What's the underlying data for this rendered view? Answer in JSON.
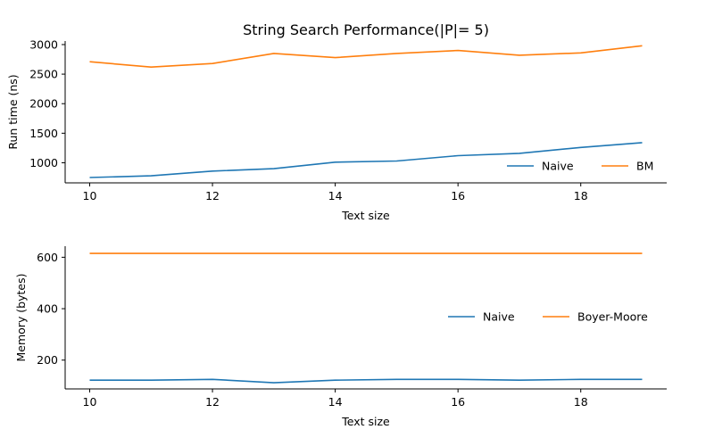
{
  "figure": {
    "title": "String Search Performance(|P|= 5)"
  },
  "chart_data": [
    {
      "type": "line",
      "title": "String Search Performance(|P|= 5)",
      "xlabel": "Text size",
      "ylabel": "Run time (ns)",
      "xlim": [
        9.6,
        19.4
      ],
      "ylim": [
        660,
        3060
      ],
      "xticks": [
        10,
        12,
        14,
        16,
        18
      ],
      "yticks": [
        1000,
        1500,
        2000,
        2500,
        3000
      ],
      "x": [
        10,
        11,
        12,
        13,
        14,
        15,
        16,
        17,
        18,
        19
      ],
      "series": [
        {
          "name": "Naive",
          "color": "#1f77b4",
          "values": [
            750,
            780,
            860,
            900,
            1010,
            1030,
            1120,
            1160,
            1260,
            1340
          ]
        },
        {
          "name": "BM",
          "color": "#ff7f0e",
          "values": [
            2710,
            2620,
            2680,
            2850,
            2780,
            2850,
            2900,
            2820,
            2860,
            2980
          ]
        }
      ],
      "legend": "lower-right",
      "grid": false
    },
    {
      "type": "line",
      "title": "",
      "xlabel": "Text size",
      "ylabel": "Memory (bytes)",
      "xlim": [
        9.6,
        19.4
      ],
      "ylim": [
        88,
        643
      ],
      "xticks": [
        10,
        12,
        14,
        16,
        18
      ],
      "yticks": [
        200,
        400,
        600
      ],
      "x": [
        10,
        11,
        12,
        13,
        14,
        15,
        16,
        17,
        18,
        19
      ],
      "series": [
        {
          "name": "Naive",
          "color": "#1f77b4",
          "values": [
            122,
            122,
            125,
            112,
            122,
            125,
            125,
            122,
            125,
            125
          ]
        },
        {
          "name": "Boyer-Moore",
          "color": "#ff7f0e",
          "values": [
            615,
            615,
            615,
            615,
            615,
            615,
            615,
            615,
            615,
            615
          ]
        }
      ],
      "legend": "center-right",
      "grid": false
    }
  ]
}
